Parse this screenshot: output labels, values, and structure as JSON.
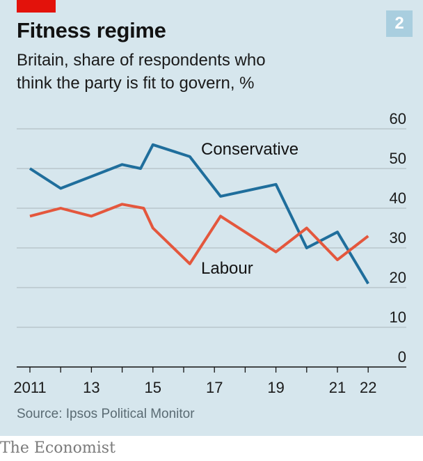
{
  "header": {
    "title": "Fitness regime",
    "badge": "2",
    "subtitle_line1": "Britain, share of respondents who",
    "subtitle_line2": "think the party is fit to govern, %"
  },
  "footer": {
    "source": "Source: Ipsos Political Monitor",
    "brand": "The Economist"
  },
  "colors": {
    "background": "#d6e6ed",
    "conservative": "#1f6e9c",
    "labour": "#e4573d",
    "gridline": "#a9b6bc",
    "accent": "#e3120b"
  },
  "chart_data": {
    "type": "line",
    "title": "Fitness regime",
    "subtitle": "Britain, share of respondents who think the party is fit to govern, %",
    "ylim": [
      0,
      60
    ],
    "yticks": [
      0,
      10,
      20,
      30,
      40,
      50,
      60
    ],
    "y_axis_side": "right",
    "xlim": [
      2010.9,
      2022.8
    ],
    "xticks": [
      2011,
      2012,
      2013,
      2014,
      2015,
      2016,
      2017,
      2018,
      2019,
      2020,
      2021,
      2022
    ],
    "xtick_labels": [
      {
        "x": 2011,
        "label": "2011"
      },
      {
        "x": 2013,
        "label": "13"
      },
      {
        "x": 2015,
        "label": "15"
      },
      {
        "x": 2017,
        "label": "17"
      },
      {
        "x": 2019,
        "label": "19"
      },
      {
        "x": 2021,
        "label": "21"
      },
      {
        "x": 2022,
        "label": "22"
      }
    ],
    "grid": true,
    "series": [
      {
        "name": "Conservative",
        "color": "#1f6e9c",
        "points": [
          [
            2011,
            50
          ],
          [
            2012,
            45
          ],
          [
            2014,
            51
          ],
          [
            2014.6,
            50
          ],
          [
            2015,
            56
          ],
          [
            2016.2,
            53
          ],
          [
            2017.2,
            43
          ],
          [
            2019,
            46
          ],
          [
            2020,
            30
          ],
          [
            2021,
            34
          ],
          [
            2022,
            21
          ]
        ]
      },
      {
        "name": "Labour",
        "color": "#e4573d",
        "points": [
          [
            2011,
            38
          ],
          [
            2012,
            40
          ],
          [
            2013,
            38
          ],
          [
            2014,
            41
          ],
          [
            2014.7,
            40
          ],
          [
            2015,
            35
          ],
          [
            2016.2,
            26
          ],
          [
            2017.2,
            38
          ],
          [
            2019,
            29
          ],
          [
            2020,
            35
          ],
          [
            2021,
            27
          ],
          [
            2022,
            33
          ]
        ]
      }
    ]
  }
}
